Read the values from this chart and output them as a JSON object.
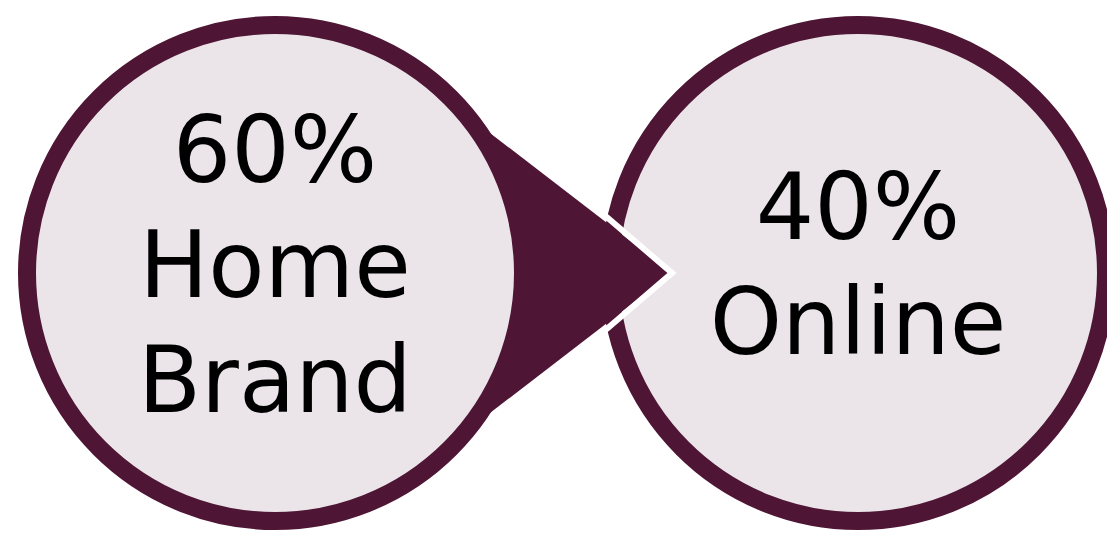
{
  "chart_data": {
    "type": "other",
    "categories": [
      "Home Brand",
      "Online"
    ],
    "values": [
      60,
      40
    ],
    "value_labels": [
      "60%",
      "40%"
    ],
    "colors": [
      "#ebe5ea",
      "#ebe5ea"
    ],
    "color": "#4e1534"
  }
}
